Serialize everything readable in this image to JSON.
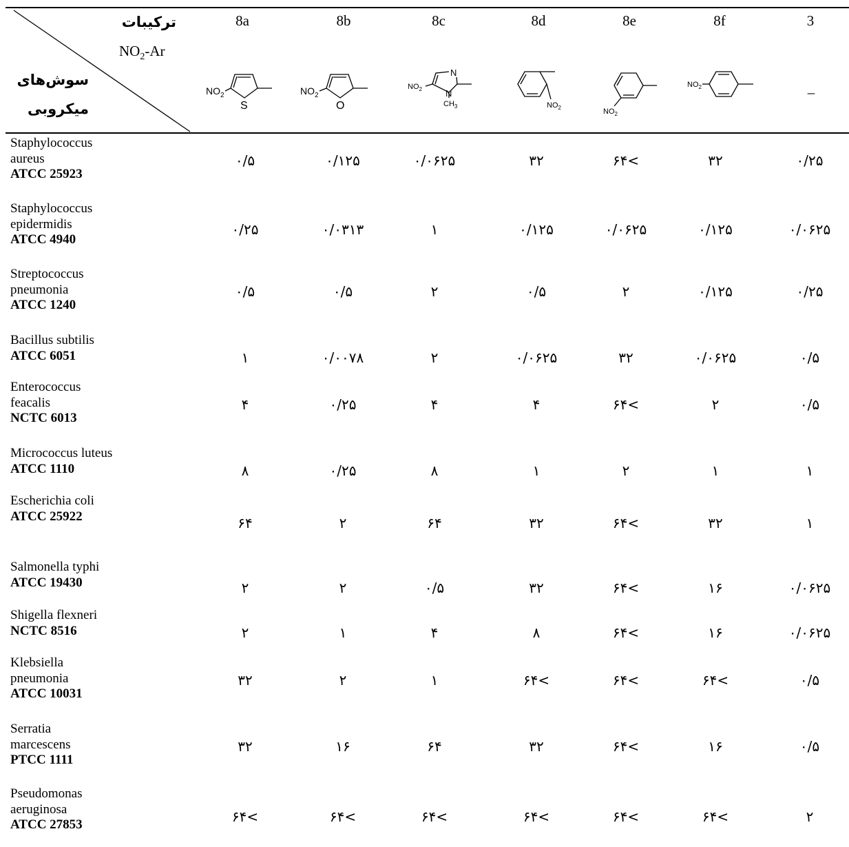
{
  "header": {
    "compounds_label": "ترکیبات",
    "ar_label_main": "NO",
    "ar_label_sub": "2",
    "ar_label_tail": "-Ar",
    "strains_label_line1": "سوش‌های",
    "strains_label_line2": "میکروبی",
    "columns": [
      "8a",
      "8b",
      "8c",
      "8d",
      "8e",
      "8f",
      "3"
    ],
    "structures": {
      "8a": {
        "left_label": "NO",
        "left_sub": "2",
        "hetero": "S"
      },
      "8b": {
        "left_label": "NO",
        "left_sub": "2",
        "hetero": "O"
      },
      "8c": {
        "left_label": "NO",
        "left_sub": "2",
        "n_top": "N",
        "n_bottom": "N",
        "methyl": "CH",
        "methyl_sub": "3"
      },
      "8d": {
        "label": "NO",
        "label_sub": "2"
      },
      "8e": {
        "label": "NO",
        "label_sub": "2"
      },
      "8f": {
        "label": "NO",
        "label_sub": "2"
      },
      "3": {
        "placeholder": "–"
      }
    }
  },
  "rows": [
    {
      "name_lines": [
        "Staphylococcus",
        "aureus"
      ],
      "code": "ATCC 25923",
      "values": [
        "۰/۵",
        "۰/۱۲۵",
        "۰/۰۶۲۵",
        "۳۲",
        "۶۴<",
        "۳۲",
        "۰/۲۵"
      ]
    },
    {
      "name_lines": [
        "Staphylococcus",
        "epidermidis"
      ],
      "code": "ATCC 4940",
      "values": [
        "۰/۲۵",
        "۰/۰۳۱۳",
        "۱",
        "۰/۱۲۵",
        "۰/۰۶۲۵",
        "۰/۱۲۵",
        "۰/۰۶۲۵"
      ]
    },
    {
      "name_lines": [
        "Streptococcus",
        "pneumonia"
      ],
      "code": "ATCC 1240",
      "values": [
        "۰/۵",
        "۰/۵",
        "۲",
        "۰/۵",
        "۲",
        "۰/۱۲۵",
        "۰/۲۵"
      ]
    },
    {
      "name_lines": [
        "Bacillus subtilis"
      ],
      "code": "ATCC 6051",
      "values": [
        "۱",
        "۰/۰۰۷۸",
        "۲",
        "۰/۰۶۲۵",
        "۳۲",
        "۰/۰۶۲۵",
        "۰/۵"
      ]
    },
    {
      "name_lines": [
        "Enterococcus",
        "feacalis"
      ],
      "code": "NCTC 6013",
      "values": [
        "۴",
        "۰/۲۵",
        "۴",
        "۴",
        "۶۴<",
        "۲",
        "۰/۵"
      ]
    },
    {
      "name_lines": [
        "Micrococcus luteus"
      ],
      "code": "ATCC 1110",
      "values": [
        "۸",
        "۰/۲۵",
        "۸",
        "۱",
        "۲",
        "۱",
        "۱"
      ]
    },
    {
      "name_lines": [
        "Escherichia coli"
      ],
      "code": "ATCC 25922",
      "values": [
        "۶۴",
        "۲",
        "۶۴",
        "۳۲",
        "۶۴<",
        "۳۲",
        "۱"
      ]
    },
    {
      "name_lines": [
        "Salmonella typhi"
      ],
      "code": "ATCC 19430",
      "values": [
        "۲",
        "۲",
        "۰/۵",
        "۳۲",
        "۶۴<",
        "۱۶",
        "۰/۰۶۲۵"
      ]
    },
    {
      "name_lines": [
        "Shigella flexneri"
      ],
      "code": "NCTC 8516",
      "values": [
        "۲",
        "۱",
        "۴",
        "۸",
        "۶۴<",
        "۱۶",
        "۰/۰۶۲۵"
      ]
    },
    {
      "name_lines": [
        "Klebsiella",
        "pneumonia"
      ],
      "code": "ATCC 10031",
      "values": [
        "۳۲",
        "۲",
        "۱",
        "۶۴<",
        "۶۴<",
        "۶۴<",
        "۰/۵"
      ]
    },
    {
      "name_lines": [
        "Serratia",
        "marcescens"
      ],
      "code": "PTCC 1111",
      "values": [
        "۳۲",
        "۱۶",
        "۶۴",
        "۳۲",
        "۶۴<",
        "۱۶",
        "۰/۵"
      ]
    },
    {
      "name_lines": [
        "Pseudomonas",
        "aeruginosa"
      ],
      "code": "ATCC 27853",
      "values": [
        "۶۴<",
        "۶۴<",
        "۶۴<",
        "۶۴<",
        "۶۴<",
        "۶۴<",
        "۲"
      ]
    }
  ]
}
